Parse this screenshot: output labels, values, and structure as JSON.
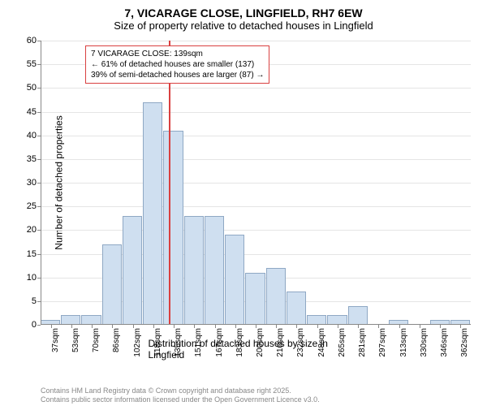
{
  "chart": {
    "type": "histogram",
    "title": "7, VICARAGE CLOSE, LINGFIELD, RH7 6EW",
    "subtitle": "Size of property relative to detached houses in Lingfield",
    "ylabel": "Number of detached properties",
    "xlabel": "Distribution of detached houses by size in Lingfield",
    "ylim": [
      0,
      60
    ],
    "ytick_step": 5,
    "x_ticks": [
      "37sqm",
      "53sqm",
      "70sqm",
      "86sqm",
      "102sqm",
      "118sqm",
      "135sqm",
      "151sqm",
      "167sqm",
      "183sqm",
      "200sqm",
      "216sqm",
      "232sqm",
      "248sqm",
      "265sqm",
      "281sqm",
      "297sqm",
      "313sqm",
      "330sqm",
      "346sqm",
      "362sqm"
    ],
    "bars": [
      1,
      2,
      2,
      17,
      23,
      47,
      41,
      23,
      23,
      19,
      11,
      12,
      7,
      2,
      2,
      4,
      0,
      1,
      0,
      1,
      1
    ],
    "bar_color": "#cfdff0",
    "bar_border": "#8fa8c4",
    "marker": {
      "position_index": 6.25,
      "color": "#d94040"
    },
    "annotation": {
      "lines": [
        "7 VICARAGE CLOSE: 139sqm",
        "← 61% of detached houses are smaller (137)",
        "39% of semi-detached houses are larger (87) →"
      ],
      "border_color": "#d94040"
    },
    "background_color": "#ffffff",
    "axis_color": "#888888",
    "grid_color": "#e5e5e5"
  },
  "footer": {
    "line1": "Contains HM Land Registry data © Crown copyright and database right 2025.",
    "line2": "Contains public sector information licensed under the Open Government Licence v3.0."
  }
}
